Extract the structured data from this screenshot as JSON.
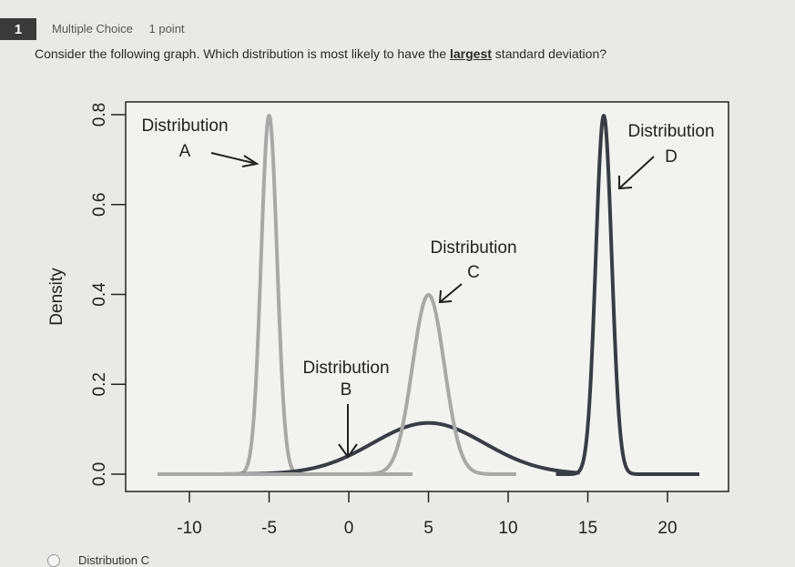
{
  "question": {
    "number": "1",
    "type": "Multiple Choice",
    "points": "1 point",
    "prompt_before": "Consider the following graph. Which distribution is most likely to have the ",
    "prompt_emph": "largest",
    "prompt_after": " standard deviation?"
  },
  "chart_data": {
    "type": "line",
    "ylabel": "Density",
    "xlim": [
      -12,
      23
    ],
    "ylim": [
      0,
      0.8
    ],
    "x_ticks": [
      -10,
      -5,
      0,
      5,
      10,
      15,
      20
    ],
    "y_ticks": [
      0.0,
      0.2,
      0.4,
      0.6,
      0.8
    ],
    "x_tick_labels": [
      "-10",
      "-5",
      "0",
      "5",
      "10",
      "15",
      "20"
    ],
    "y_tick_labels": [
      "0.0",
      "0.2",
      "0.4",
      "0.6",
      "0.8"
    ],
    "grid": false,
    "series": [
      {
        "name": "Distribution A",
        "mean": -5,
        "sd": 0.5,
        "x_range": [
          -12,
          4
        ],
        "color": "#a8a8a8"
      },
      {
        "name": "Distribution B",
        "mean": 5,
        "sd": 3.5,
        "x_range": [
          -12,
          14.5
        ],
        "color": "#3a3c44"
      },
      {
        "name": "Distribution C",
        "mean": 5,
        "sd": 1,
        "x_range": [
          -12,
          10.5
        ],
        "color": "#a8a8a8"
      },
      {
        "name": "Distribution D",
        "mean": 16,
        "sd": 0.5,
        "x_range": [
          13,
          22
        ],
        "color": "#3a3c44"
      }
    ],
    "annotations": {
      "a_line1": "Distribution",
      "a_line2": "A",
      "b_line1": "Distribution",
      "b_line2": "B",
      "c_line1": "Distribution",
      "c_line2": "C",
      "d_line1": "Distribution",
      "d_line2": "D"
    }
  },
  "options": [
    {
      "label": "Distribution C"
    }
  ]
}
